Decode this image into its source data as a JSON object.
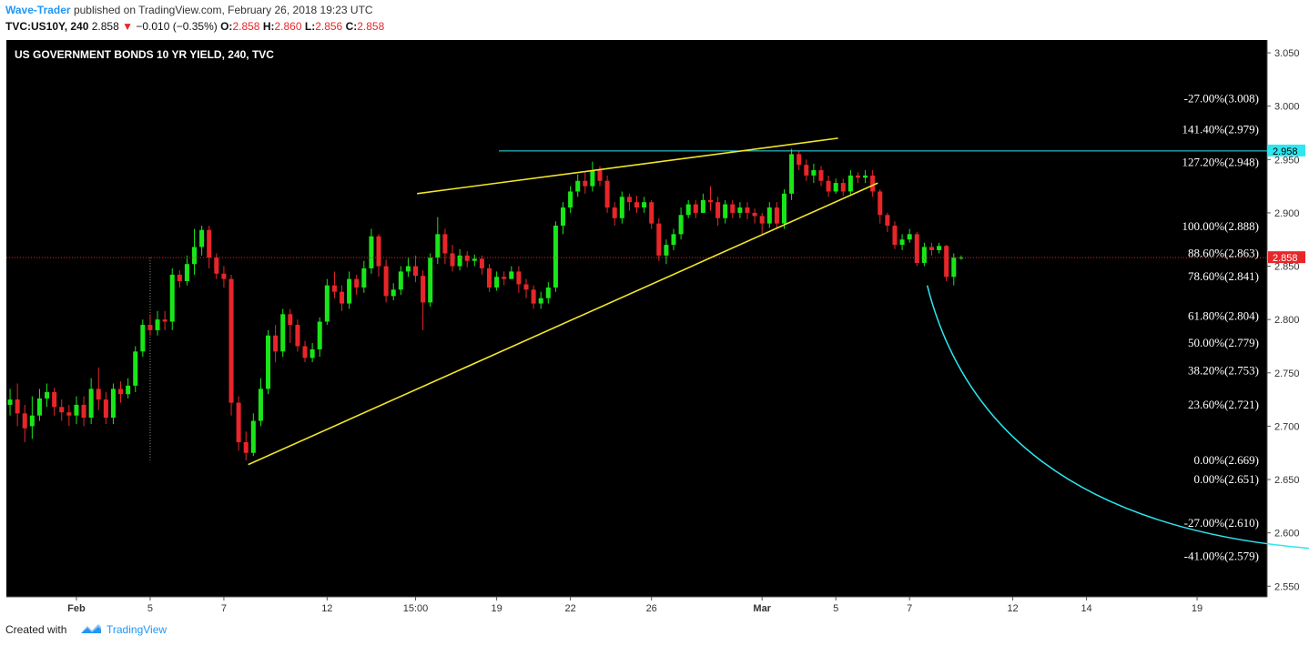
{
  "header": {
    "author": "Wave-Trader",
    "published_text": "published on TradingView.com, February 26, 2018 19:23 UTC",
    "symbol": "TVC:US10Y, 240",
    "last": "2.858",
    "change_arrow": "▼",
    "change": "−0.010 (−0.35%)",
    "o_label": "O:",
    "o_value": "2.858",
    "h_label": "H:",
    "h_value": "2.860",
    "l_label": "L:",
    "l_value": "2.856",
    "c_label": "C:",
    "c_value": "2.858"
  },
  "footer": {
    "created_with": "Created with",
    "brand": "TradingView"
  },
  "colors": {
    "up": "#19e619",
    "down": "#e8262a",
    "trend": "#f2e628",
    "cyan": "#2ee6f0",
    "bg": "#000000"
  },
  "chart_data": {
    "type": "candlestick",
    "title": "US GOVERNMENT BONDS 10 YR YIELD, 240, TVC",
    "ylim": [
      2.54,
      3.062
    ],
    "y_ticks": [
      "3.050",
      "3.000",
      "2.950",
      "2.900",
      "2.850",
      "2.800",
      "2.750",
      "2.700",
      "2.650",
      "2.600",
      "2.550"
    ],
    "x_ticks": [
      {
        "label": "Feb",
        "bar": 9
      },
      {
        "label": "5",
        "bar": 19
      },
      {
        "label": "7",
        "bar": 29
      },
      {
        "label": "12",
        "bar": 43
      },
      {
        "label": "15:00",
        "bar": 55
      },
      {
        "label": "19",
        "bar": 66
      },
      {
        "label": "22",
        "bar": 76
      },
      {
        "label": "26",
        "bar": 87
      },
      {
        "label": "Mar",
        "bar": 102
      },
      {
        "label": "5",
        "bar": 112
      },
      {
        "label": "7",
        "bar": 122
      },
      {
        "label": "12",
        "bar": 136
      },
      {
        "label": "14",
        "bar": 146
      },
      {
        "label": "19",
        "bar": 161
      }
    ],
    "bars_total": 171,
    "candles": [
      [
        2.725,
        2.72,
        2.735,
        2.71
      ],
      [
        2.712,
        2.725,
        2.74,
        2.7
      ],
      [
        2.698,
        2.712,
        2.72,
        2.685
      ],
      [
        2.71,
        2.7,
        2.728,
        2.688
      ],
      [
        2.726,
        2.71,
        2.735,
        2.705
      ],
      [
        2.732,
        2.726,
        2.74,
        2.718
      ],
      [
        2.718,
        2.732,
        2.736,
        2.71
      ],
      [
        2.713,
        2.718,
        2.725,
        2.705
      ],
      [
        2.71,
        2.713,
        2.72,
        2.7
      ],
      [
        2.72,
        2.71,
        2.728,
        2.702
      ],
      [
        2.708,
        2.72,
        2.728,
        2.7
      ],
      [
        2.735,
        2.708,
        2.745,
        2.702
      ],
      [
        2.725,
        2.735,
        2.755,
        2.715
      ],
      [
        2.708,
        2.725,
        2.732,
        2.702
      ],
      [
        2.735,
        2.708,
        2.74,
        2.702
      ],
      [
        2.73,
        2.735,
        2.742,
        2.722
      ],
      [
        2.738,
        2.73,
        2.745,
        2.726
      ],
      [
        2.77,
        2.738,
        2.775,
        2.732
      ],
      [
        2.795,
        2.77,
        2.8,
        2.765
      ],
      [
        2.79,
        2.795,
        2.805,
        2.785
      ],
      [
        2.8,
        2.79,
        2.808,
        2.785
      ],
      [
        2.798,
        2.8,
        2.808,
        2.79
      ],
      [
        2.842,
        2.798,
        2.848,
        2.79
      ],
      [
        2.836,
        2.842,
        2.846,
        2.83
      ],
      [
        2.852,
        2.836,
        2.86,
        2.832
      ],
      [
        2.868,
        2.852,
        2.885,
        2.842
      ],
      [
        2.884,
        2.868,
        2.888,
        2.86
      ],
      [
        2.858,
        2.884,
        2.888,
        2.848
      ],
      [
        2.843,
        2.858,
        2.862,
        2.838
      ],
      [
        2.838,
        2.843,
        2.85,
        2.83
      ],
      [
        2.722,
        2.838,
        2.842,
        2.71
      ],
      [
        2.685,
        2.722,
        2.728,
        2.677
      ],
      [
        2.675,
        2.685,
        2.695,
        2.668
      ],
      [
        2.705,
        2.675,
        2.712,
        2.672
      ],
      [
        2.735,
        2.705,
        2.745,
        2.7
      ],
      [
        2.785,
        2.735,
        2.79,
        2.73
      ],
      [
        2.77,
        2.785,
        2.795,
        2.76
      ],
      [
        2.805,
        2.77,
        2.81,
        2.765
      ],
      [
        2.795,
        2.805,
        2.81,
        2.778
      ],
      [
        2.775,
        2.795,
        2.8,
        2.77
      ],
      [
        2.764,
        2.775,
        2.78,
        2.76
      ],
      [
        2.772,
        2.764,
        2.778,
        2.76
      ],
      [
        2.798,
        2.772,
        2.802,
        2.765
      ],
      [
        2.832,
        2.798,
        2.838,
        2.795
      ],
      [
        2.826,
        2.832,
        2.845,
        2.82
      ],
      [
        2.815,
        2.826,
        2.832,
        2.808
      ],
      [
        2.838,
        2.815,
        2.845,
        2.81
      ],
      [
        2.83,
        2.838,
        2.842,
        2.823
      ],
      [
        2.848,
        2.83,
        2.855,
        2.825
      ],
      [
        2.878,
        2.848,
        2.885,
        2.843
      ],
      [
        2.85,
        2.878,
        2.88,
        2.84
      ],
      [
        2.822,
        2.85,
        2.856,
        2.816
      ],
      [
        2.828,
        2.822,
        2.834,
        2.818
      ],
      [
        2.845,
        2.828,
        2.85,
        2.823
      ],
      [
        2.85,
        2.845,
        2.858,
        2.84
      ],
      [
        2.841,
        2.85,
        2.86,
        2.835
      ],
      [
        2.816,
        2.841,
        2.846,
        2.79
      ],
      [
        2.858,
        2.816,
        2.862,
        2.812
      ],
      [
        2.88,
        2.858,
        2.896,
        2.852
      ],
      [
        2.862,
        2.88,
        2.885,
        2.852
      ],
      [
        2.85,
        2.862,
        2.87,
        2.845
      ],
      [
        2.86,
        2.85,
        2.866,
        2.846
      ],
      [
        2.855,
        2.86,
        2.864,
        2.849
      ],
      [
        2.857,
        2.855,
        2.861,
        2.85
      ],
      [
        2.848,
        2.857,
        2.86,
        2.842
      ],
      [
        2.83,
        2.848,
        2.852,
        2.826
      ],
      [
        2.84,
        2.83,
        2.845,
        2.827
      ],
      [
        2.838,
        2.84,
        2.845,
        2.832
      ],
      [
        2.845,
        2.838,
        2.85,
        2.84
      ],
      [
        2.833,
        2.845,
        2.85,
        2.825
      ],
      [
        2.828,
        2.833,
        2.838,
        2.82
      ],
      [
        2.815,
        2.828,
        2.832,
        2.81
      ],
      [
        2.82,
        2.815,
        2.826,
        2.81
      ],
      [
        2.83,
        2.82,
        2.835,
        2.815
      ],
      [
        2.888,
        2.83,
        2.892,
        2.826
      ],
      [
        2.905,
        2.888,
        2.91,
        2.88
      ],
      [
        2.92,
        2.905,
        2.925,
        2.9
      ],
      [
        2.93,
        2.92,
        2.936,
        2.915
      ],
      [
        2.925,
        2.93,
        2.938,
        2.918
      ],
      [
        2.94,
        2.925,
        2.948,
        2.92
      ],
      [
        2.93,
        2.94,
        2.944,
        2.925
      ],
      [
        2.905,
        2.93,
        2.935,
        2.9
      ],
      [
        2.895,
        2.905,
        2.91,
        2.888
      ],
      [
        2.915,
        2.895,
        2.92,
        2.89
      ],
      [
        2.91,
        2.915,
        2.918,
        2.902
      ],
      [
        2.905,
        2.91,
        2.916,
        2.9
      ],
      [
        2.91,
        2.905,
        2.915,
        2.9
      ],
      [
        2.89,
        2.91,
        2.912,
        2.885
      ],
      [
        2.86,
        2.89,
        2.895,
        2.855
      ],
      [
        2.87,
        2.86,
        2.875,
        2.852
      ],
      [
        2.88,
        2.87,
        2.885,
        2.865
      ],
      [
        2.898,
        2.88,
        2.905,
        2.875
      ],
      [
        2.908,
        2.898,
        2.912,
        2.895
      ],
      [
        2.9,
        2.908,
        2.912,
        2.895
      ],
      [
        2.912,
        2.9,
        2.918,
        2.905
      ],
      [
        2.91,
        2.912,
        2.925,
        2.902
      ],
      [
        2.895,
        2.91,
        2.915,
        2.888
      ],
      [
        2.908,
        2.895,
        2.912,
        2.89
      ],
      [
        2.9,
        2.908,
        2.912,
        2.895
      ],
      [
        2.905,
        2.9,
        2.91,
        2.895
      ],
      [
        2.9,
        2.905,
        2.91,
        2.894
      ],
      [
        2.897,
        2.9,
        2.904,
        2.89
      ],
      [
        2.89,
        2.897,
        2.9,
        2.88
      ],
      [
        2.905,
        2.89,
        2.91,
        2.886
      ],
      [
        2.89,
        2.905,
        2.91,
        2.885
      ],
      [
        2.918,
        2.89,
        2.922,
        2.885
      ],
      [
        2.955,
        2.918,
        2.96,
        2.912
      ],
      [
        2.945,
        2.955,
        2.958,
        2.94
      ],
      [
        2.935,
        2.945,
        2.95,
        2.93
      ],
      [
        2.94,
        2.935,
        2.946,
        2.928
      ],
      [
        2.93,
        2.94,
        2.944,
        2.925
      ],
      [
        2.92,
        2.93,
        2.935,
        2.915
      ],
      [
        2.928,
        2.92,
        2.932,
        2.918
      ],
      [
        2.92,
        2.928,
        2.932,
        2.916
      ],
      [
        2.935,
        2.92,
        2.94,
        2.916
      ],
      [
        2.933,
        2.935,
        2.938,
        2.928
      ],
      [
        2.935,
        2.933,
        2.94,
        2.928
      ],
      [
        2.92,
        2.935,
        2.94,
        2.915
      ],
      [
        2.898,
        2.92,
        2.922,
        2.89
      ],
      [
        2.888,
        2.898,
        2.9,
        2.882
      ],
      [
        2.87,
        2.888,
        2.892,
        2.866
      ],
      [
        2.875,
        2.87,
        2.88,
        2.865
      ],
      [
        2.88,
        2.875,
        2.885,
        2.872
      ],
      [
        2.853,
        2.88,
        2.882,
        2.85
      ],
      [
        2.868,
        2.853,
        2.872,
        2.85
      ],
      [
        2.865,
        2.868,
        2.872,
        2.86
      ],
      [
        2.869,
        2.865,
        2.872,
        2.862
      ],
      [
        2.84,
        2.869,
        2.87,
        2.836
      ],
      [
        2.858,
        2.84,
        2.862,
        2.832
      ],
      [
        2.858,
        2.858,
        2.86,
        2.856
      ]
    ],
    "extra_wicks": [
      {
        "bar": 19,
        "from": 2.858,
        "to": 2.668
      }
    ],
    "price_lines": [
      {
        "value": 2.958,
        "label": "2.958",
        "color": "cyan"
      },
      {
        "value": 2.858,
        "label": "2.858",
        "color": "red"
      }
    ],
    "fib_levels": [
      {
        "label": "-27.00%(3.008)",
        "value": 3.008
      },
      {
        "label": "141.40%(2.979)",
        "value": 2.979
      },
      {
        "label": "127.20%(2.948)",
        "value": 2.948
      },
      {
        "label": "100.00%(2.888)",
        "value": 2.888
      },
      {
        "label": "88.60%(2.863)",
        "value": 2.863
      },
      {
        "label": "78.60%(2.841)",
        "value": 2.841
      },
      {
        "label": "61.80%(2.804)",
        "value": 2.804
      },
      {
        "label": "50.00%(2.779)",
        "value": 2.779
      },
      {
        "label": "38.20%(2.753)",
        "value": 2.753
      },
      {
        "label": "23.60%(2.721)",
        "value": 2.721
      },
      {
        "label": "0.00%(2.669)",
        "value": 2.669
      },
      {
        "label": "0.00%(2.651)",
        "value": 2.651
      },
      {
        "label": "-27.00%(2.610)",
        "value": 2.61
      },
      {
        "label": "-41.00%(2.579)",
        "value": 2.579
      }
    ],
    "trendlines": [
      {
        "x1": 32.3,
        "y1": 2.664,
        "x2": 117.7,
        "y2": 2.928
      },
      {
        "x1": 55.2,
        "y1": 2.918,
        "x2": 112.3,
        "y2": 2.97
      }
    ],
    "horizontal_line": {
      "value": 2.958,
      "from_bar": 66.3
    },
    "projection": {
      "from_bar": 124.4,
      "from_value": 2.832,
      "to_bar": 182.4,
      "to_value": 2.583
    }
  }
}
